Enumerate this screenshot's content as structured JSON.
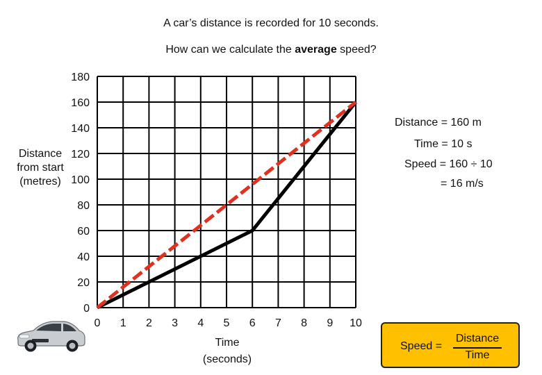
{
  "heading": {
    "line1": "A car’s distance is recorded for 10 seconds.",
    "line2_before": "How can we calculate the ",
    "line2_bold": "average",
    "line2_after": " speed?"
  },
  "calculation": {
    "distance": "Distance = 160 m",
    "time": "Time = 10 s",
    "speed": "Speed = 160 ÷ 10",
    "result": "= 16 m/s"
  },
  "formula": {
    "lhs": "Speed =",
    "numerator": "Distance",
    "denominator": "Time"
  },
  "chart_data": {
    "type": "line",
    "xlabel": "Time (seconds)",
    "ylabel": "Distance from start (metres)",
    "xlim": [
      0,
      10
    ],
    "ylim": [
      0,
      180
    ],
    "x_ticks": [
      0,
      1,
      2,
      3,
      4,
      5,
      6,
      7,
      8,
      9,
      10
    ],
    "y_ticks": [
      0,
      20,
      40,
      60,
      80,
      100,
      120,
      140,
      160,
      180
    ],
    "grid": true,
    "series": [
      {
        "style": "solid",
        "color": "#000000",
        "points": [
          [
            0,
            0
          ],
          [
            1,
            10
          ],
          [
            2,
            20
          ],
          [
            3,
            30
          ],
          [
            4,
            40
          ],
          [
            5,
            50
          ],
          [
            6,
            60
          ],
          [
            7,
            85
          ],
          [
            8,
            110
          ],
          [
            9,
            135
          ],
          [
            10,
            160
          ]
        ]
      },
      {
        "style": "dashed",
        "color": "#e03020",
        "points": [
          [
            0,
            0
          ],
          [
            10,
            160
          ]
        ]
      }
    ]
  }
}
